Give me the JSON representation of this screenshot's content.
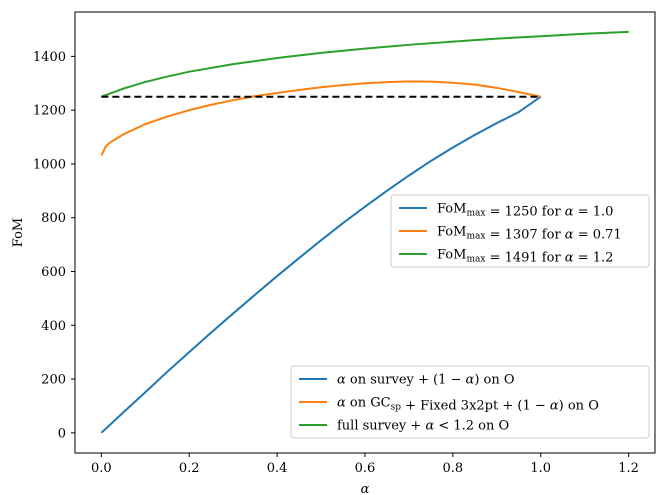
{
  "chart_data": {
    "type": "line",
    "xlabel": "α",
    "ylabel": "FoM",
    "xlim": [
      -0.06,
      1.26
    ],
    "ylim": [
      -75,
      1565
    ],
    "xticks": [
      0.0,
      0.2,
      0.4,
      0.6,
      0.8,
      1.0,
      1.2
    ],
    "xtick_labels": [
      "0.0",
      "0.2",
      "0.4",
      "0.6",
      "0.8",
      "1.0",
      "1.2"
    ],
    "yticks": [
      0,
      200,
      400,
      600,
      800,
      1000,
      1200,
      1400
    ],
    "ytick_labels": [
      "0",
      "200",
      "400",
      "600",
      "800",
      "1000",
      "1200",
      "1400"
    ],
    "grid": false,
    "colors": {
      "blue": "#1f77b4",
      "orange": "#ff7f0e",
      "green": "#2ca02c",
      "reference": "#000000"
    },
    "series": [
      {
        "name": "α on survey + (1 − α) on O",
        "color": "#1f77b4",
        "x": [
          0.0,
          0.05,
          0.1,
          0.15,
          0.2,
          0.25,
          0.3,
          0.35,
          0.4,
          0.45,
          0.5,
          0.55,
          0.6,
          0.65,
          0.7,
          0.75,
          0.8,
          0.85,
          0.9,
          0.95,
          1.0
        ],
        "y": [
          0,
          76,
          151,
          227,
          300,
          373,
          444,
          514,
          583,
          650,
          716,
          780,
          841,
          900,
          957,
          1011,
          1061,
          1108,
          1152,
          1193,
          1250
        ]
      },
      {
        "name": "α on GCsp + Fixed 3x2pt + (1 − α) on O",
        "color": "#ff7f0e",
        "x": [
          0.0,
          0.005,
          0.01,
          0.02,
          0.05,
          0.1,
          0.15,
          0.2,
          0.25,
          0.3,
          0.35,
          0.4,
          0.45,
          0.5,
          0.55,
          0.6,
          0.65,
          0.7,
          0.75,
          0.8,
          0.85,
          0.9,
          0.95,
          1.0
        ],
        "y": [
          1032,
          1048,
          1065,
          1080,
          1110,
          1148,
          1176,
          1200,
          1220,
          1237,
          1252,
          1264,
          1275,
          1285,
          1293,
          1300,
          1304,
          1307,
          1306,
          1302,
          1295,
          1283,
          1267,
          1250
        ]
      },
      {
        "name": "full survey + α < 1.2 on O",
        "color": "#2ca02c",
        "x": [
          0.0,
          0.05,
          0.1,
          0.15,
          0.2,
          0.3,
          0.4,
          0.5,
          0.6,
          0.7,
          0.8,
          0.9,
          1.0,
          1.1,
          1.2
        ],
        "y": [
          1250,
          1280,
          1305,
          1325,
          1343,
          1371,
          1394,
          1413,
          1429,
          1443,
          1455,
          1466,
          1475,
          1484,
          1491
        ]
      }
    ],
    "reference_line": {
      "y": 1250,
      "x": [
        0.0,
        1.0
      ],
      "style": "dashed",
      "color": "#000000"
    },
    "legends": [
      {
        "placement": "center-right",
        "entries": [
          {
            "text": "FoM_max = 1250 for α = 1.0",
            "color": "#1f77b4"
          },
          {
            "text": "FoM_max = 1307 for α = 0.71",
            "color": "#ff7f0e"
          },
          {
            "text": "FoM_max = 1491 for α = 1.2",
            "color": "#2ca02c"
          }
        ]
      },
      {
        "placement": "lower-right",
        "entries": [
          {
            "text": "α on survey + (1 − α) on O",
            "color": "#1f77b4"
          },
          {
            "text": "α on GCsp + Fixed 3x2pt + (1 − α) on O",
            "color": "#ff7f0e"
          },
          {
            "text": "full survey + α < 1.2 on O",
            "color": "#2ca02c"
          }
        ]
      }
    ]
  }
}
